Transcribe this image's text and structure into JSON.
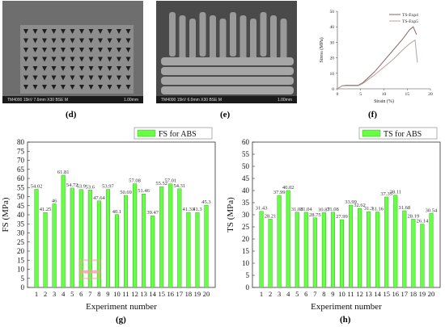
{
  "panels": {
    "d": {
      "label": "(d)",
      "caption": "TM4000 15kV 7.6mm X30 BSE M",
      "scale": "1.00mm"
    },
    "e": {
      "label": "(e)",
      "caption": "TM4000 15kV 6.0mm X30 BSE M",
      "scale": "1.00mm"
    },
    "f": {
      "label": "(f)"
    },
    "g": {
      "label": "(g)"
    },
    "h": {
      "label": "(h)"
    }
  },
  "colors": {
    "bar": "#66ff44",
    "bar_edge": "#2d9a1d",
    "curve_exp4": "#8a6464",
    "curve_exp5": "#b8a0a0",
    "highlight": "#ff9ea8"
  },
  "chart_data": [
    {
      "id": "f",
      "type": "line",
      "xlabel": "Strain  (%)",
      "ylabel": "Stress (MPa)",
      "xlim": [
        0,
        20
      ],
      "ylim": [
        0,
        50
      ],
      "xticks": [
        "0",
        "5",
        "10",
        "15",
        "20"
      ],
      "yticks": [
        "0",
        "10",
        "20",
        "30",
        "40",
        "50"
      ],
      "legend_position": "top-right",
      "series": [
        {
          "name": "TS-Exp4",
          "x": [
            0,
            1,
            2,
            4.5,
            5.5,
            8,
            10,
            12,
            14,
            15.5,
            16.3,
            17
          ],
          "y": [
            0,
            2,
            2.3,
            2.3,
            4,
            11,
            18,
            25,
            32,
            38,
            40,
            35
          ]
        },
        {
          "name": "TS-Exp5",
          "x": [
            0,
            1,
            2,
            4.5,
            5.5,
            8,
            10,
            12,
            14,
            15.5,
            16.7,
            17.2
          ],
          "y": [
            0,
            1.8,
            2.0,
            2.0,
            3.5,
            9,
            14,
            19,
            25,
            29,
            31.5,
            17
          ]
        }
      ]
    },
    {
      "id": "g",
      "type": "bar",
      "xlabel": "Experiment number",
      "ylabel": "FS (MPa)",
      "ylim": [
        0,
        80
      ],
      "yticks": [
        "0",
        "5",
        "10",
        "15",
        "20",
        "25",
        "30",
        "35",
        "40",
        "45",
        "50",
        "55",
        "60",
        "65",
        "70",
        "75",
        "80"
      ],
      "categories": [
        "1",
        "2",
        "3",
        "4",
        "5",
        "6",
        "7",
        "8",
        "9",
        "10",
        "11",
        "12",
        "13",
        "14",
        "15",
        "16",
        "17",
        "18",
        "19",
        "20"
      ],
      "series": [
        {
          "name": "FS for ABS",
          "values": [
            54.02,
            41.25,
            46,
            61.81,
            54.72,
            53.9,
            53.6,
            47.64,
            53.97,
            40.1,
            50.69,
            57.08,
            51.46,
            39.47,
            55.52,
            57.01,
            54.31,
            41.33,
            41.3,
            45.3
          ],
          "value_labels": [
            "54.02",
            "41.25",
            "46",
            "61.81",
            "54.72",
            "53.9",
            "53.6",
            "47.64",
            "53.97",
            "40.1",
            "50.69",
            "57.08",
            "51.46",
            "39.47",
            "55.52",
            "57.01",
            "54.31",
            "41.33",
            "41.3",
            "45.3"
          ]
        }
      ],
      "legend_position": "top-right"
    },
    {
      "id": "h",
      "type": "bar",
      "xlabel": "Experiment number",
      "ylabel": "TS (MPa)",
      "ylim": [
        0,
        60
      ],
      "yticks": [
        "0",
        "5",
        "10",
        "15",
        "20",
        "25",
        "30",
        "35",
        "40",
        "45",
        "50",
        "55",
        "60"
      ],
      "categories": [
        "1",
        "2",
        "3",
        "4",
        "5",
        "6",
        "7",
        "8",
        "9",
        "10",
        "11",
        "12",
        "13",
        "14",
        "15",
        "16",
        "17",
        "18",
        "19",
        "20"
      ],
      "series": [
        {
          "name": "TS for ABS",
          "values": [
            31.43,
            28.21,
            37.99,
            40.02,
            31.08,
            31.04,
            28.75,
            30.87,
            31.08,
            27.99,
            33.99,
            32.62,
            31.3,
            31.16,
            37.35,
            38.11,
            31.68,
            28.19,
            26.14,
            30.54
          ],
          "value_labels": [
            "31.43",
            "28.21",
            "37.99",
            "40.02",
            "31.08",
            "31.04",
            "28.75",
            "30.87",
            "31.08",
            "27.99",
            "33.99",
            "32.62",
            "31.3",
            "31.16",
            "37.35",
            "38.11",
            "31.68",
            "28.19",
            "26.14",
            "30.54"
          ]
        }
      ],
      "legend_position": "top-right"
    }
  ]
}
